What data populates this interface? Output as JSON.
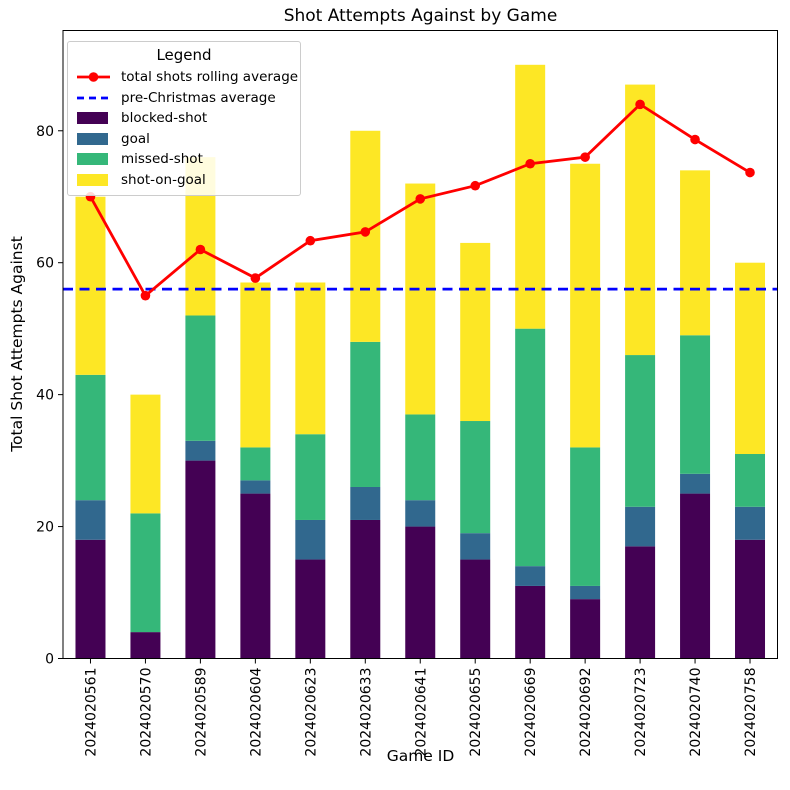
{
  "title": "Shot Attempts Against by Game",
  "chart_data": {
    "type": "bar",
    "subtype": "stacked-bar-with-line",
    "title": "Shot Attempts Against by Game",
    "xlabel": "Game ID",
    "ylabel": "Total Shot Attempts Against",
    "categories": [
      "2024020561",
      "2024020570",
      "2024020589",
      "2024020604",
      "2024020623",
      "2024020633",
      "2024020641",
      "2024020655",
      "2024020669",
      "2024020692",
      "2024020723",
      "2024020740",
      "2024020758"
    ],
    "series": [
      {
        "name": "blocked-shot",
        "color": "#440154",
        "values": [
          18,
          4,
          30,
          25,
          15,
          21,
          20,
          15,
          11,
          9,
          17,
          25,
          18
        ]
      },
      {
        "name": "goal",
        "color": "#31688e",
        "values": [
          6,
          0,
          3,
          2,
          6,
          5,
          4,
          4,
          3,
          2,
          6,
          3,
          5
        ]
      },
      {
        "name": "missed-shot",
        "color": "#35b779",
        "values": [
          19,
          18,
          19,
          5,
          13,
          22,
          13,
          17,
          36,
          21,
          23,
          21,
          8
        ]
      },
      {
        "name": "shot-on-goal",
        "color": "#fde725",
        "values": [
          27,
          18,
          24,
          25,
          23,
          32,
          35,
          27,
          40,
          43,
          41,
          25,
          29
        ]
      }
    ],
    "bar_totals": [
      70,
      40,
      76,
      57,
      57,
      80,
      72,
      63,
      90,
      75,
      87,
      74,
      60
    ],
    "line_series": {
      "name": "total shots rolling average",
      "color": "#ff0000",
      "marker": "circle",
      "values": [
        70,
        55,
        62,
        57.67,
        63.33,
        64.67,
        69.67,
        71.67,
        75,
        76,
        84,
        78.67,
        73.67
      ]
    },
    "hline": {
      "name": "pre-Christmas average",
      "color": "#0000ff",
      "style": "dashed",
      "value": 56
    },
    "ylim": [
      0,
      95.2
    ],
    "yticks": [
      0,
      20,
      40,
      60,
      80
    ],
    "grid": false,
    "legend_position": "upper left"
  },
  "legend": {
    "title": "Legend",
    "entries": [
      {
        "label": "total shots rolling average",
        "type": "line-marker",
        "color": "#ff0000"
      },
      {
        "label": "pre-Christmas average",
        "type": "dashed-line",
        "color": "#0000ff"
      },
      {
        "label": "blocked-shot",
        "type": "patch",
        "color": "#440154"
      },
      {
        "label": "goal",
        "type": "patch",
        "color": "#31688e"
      },
      {
        "label": "missed-shot",
        "type": "patch",
        "color": "#35b779"
      },
      {
        "label": "shot-on-goal",
        "type": "patch",
        "color": "#fde725"
      }
    ]
  }
}
